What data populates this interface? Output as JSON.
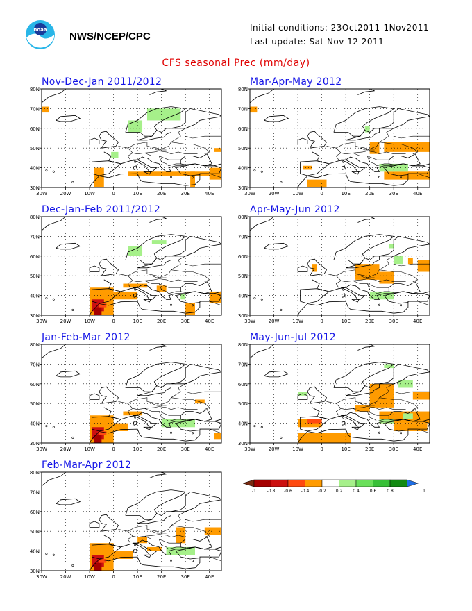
{
  "header": {
    "org": "NWS/NCEP/CPC",
    "initial_conditions": "Initial conditions: 23Oct2011-1Nov2011",
    "last_update": "Last update: Sat Nov 12 2011",
    "title": "CFS seasonal Prec (mm/day)"
  },
  "colors": {
    "title": "#e00000",
    "panel_title": "#1414e6",
    "land_border": "#000000"
  },
  "axes": {
    "lat_ticks": [
      "80N",
      "70N",
      "60N",
      "50N",
      "40N",
      "30N"
    ],
    "lon_ticks": [
      "30W",
      "20W",
      "10W",
      "0",
      "10E",
      "20E",
      "30E",
      "40E"
    ]
  },
  "panels": [
    {
      "id": "ndj",
      "title": "Nov-Dec-Jan 2011/2012"
    },
    {
      "id": "mam",
      "title": "Mar-Apr-May 2012"
    },
    {
      "id": "djf",
      "title": "Dec-Jan-Feb 2011/2012"
    },
    {
      "id": "amj",
      "title": "Apr-May-Jun 2012"
    },
    {
      "id": "jfm",
      "title": "Jan-Feb-Mar 2012"
    },
    {
      "id": "mjj",
      "title": "May-Jun-Jul 2012"
    },
    {
      "id": "fma",
      "title": "Feb-Mar-Apr 2012"
    }
  ],
  "legend": {
    "labels": [
      "-1",
      "-0.8",
      "-0.6",
      "-0.4",
      "-0.2",
      "0.2",
      "0.4",
      "0.6",
      "0.8",
      "1"
    ],
    "colors": [
      "#7a2a10",
      "#a50000",
      "#cc1010",
      "#ff4a10",
      "#ff9b00",
      "#ffffff",
      "#a6f08a",
      "#6ae05a",
      "#38c038",
      "#128a12",
      "#1e6ee6"
    ]
  },
  "map_data": {
    "ndj": {
      "dry": [
        [
          -30,
          68,
          -27,
          71
        ],
        [
          6,
          36,
          40,
          38
        ],
        [
          -8,
          30,
          -4,
          40
        ],
        [
          32,
          30,
          34,
          38
        ],
        [
          40,
          34,
          45,
          40
        ],
        [
          42,
          48,
          45,
          50
        ]
      ],
      "wet": [
        [
          6,
          58,
          12,
          64
        ],
        [
          14,
          64,
          28,
          70
        ],
        [
          -1,
          45,
          2,
          48
        ]
      ]
    },
    "mam": {
      "dry": [
        [
          -30,
          68,
          -27,
          71
        ],
        [
          20,
          47,
          24,
          53
        ],
        [
          26,
          48,
          45,
          53
        ],
        [
          -8,
          39,
          -4,
          41
        ],
        [
          -6,
          30,
          2,
          34
        ],
        [
          26,
          34,
          45,
          38
        ]
      ],
      "wet": [
        [
          24,
          38,
          36,
          42
        ],
        [
          18,
          58,
          20,
          61
        ]
      ]
    },
    "djf": {
      "dry": [
        [
          -10,
          30,
          0,
          44
        ],
        [
          0,
          38,
          10,
          42
        ],
        [
          4,
          44,
          14,
          46
        ],
        [
          18,
          42,
          22,
          45
        ],
        [
          30,
          30,
          34,
          36
        ],
        [
          40,
          36,
          45,
          42
        ]
      ],
      "wet": [
        [
          6,
          60,
          12,
          65
        ],
        [
          16,
          66,
          22,
          68
        ],
        [
          28,
          38,
          30,
          41
        ]
      ]
    },
    "amj": {
      "dry": [
        [
          -4,
          52,
          -2,
          56
        ],
        [
          14,
          48,
          24,
          56
        ],
        [
          24,
          46,
          30,
          52
        ],
        [
          40,
          52,
          45,
          58
        ],
        [
          36,
          56,
          38,
          59
        ]
      ],
      "wet": [
        [
          20,
          38,
          30,
          42
        ],
        [
          28,
          64,
          30,
          66
        ],
        [
          30,
          56,
          34,
          60
        ]
      ]
    },
    "jfm": {
      "dry": [
        [
          -10,
          30,
          0,
          44
        ],
        [
          0,
          36,
          6,
          40
        ],
        [
          4,
          44,
          12,
          46
        ],
        [
          34,
          50,
          38,
          52
        ],
        [
          42,
          32,
          45,
          35
        ]
      ],
      "wet": [
        [
          20,
          38,
          34,
          42
        ]
      ]
    },
    "mjj": {
      "dry": [
        [
          20,
          48,
          30,
          60
        ],
        [
          24,
          40,
          45,
          46
        ],
        [
          30,
          36,
          44,
          40
        ],
        [
          -10,
          38,
          0,
          42
        ],
        [
          -10,
          30,
          12,
          35
        ],
        [
          38,
          52,
          45,
          56
        ],
        [
          14,
          46,
          20,
          49
        ]
      ],
      "wet": [
        [
          -10,
          54,
          -6,
          56
        ],
        [
          24,
          40,
          30,
          42
        ],
        [
          34,
          42,
          38,
          45
        ],
        [
          26,
          68,
          30,
          70
        ],
        [
          32,
          58,
          38,
          62
        ]
      ]
    },
    "fma": {
      "dry": [
        [
          -10,
          30,
          0,
          44
        ],
        [
          0,
          36,
          8,
          40
        ],
        [
          10,
          44,
          14,
          47
        ],
        [
          26,
          44,
          30,
          52
        ],
        [
          38,
          48,
          45,
          52
        ],
        [
          14,
          40,
          20,
          42
        ]
      ],
      "wet": [
        [
          22,
          38,
          34,
          42
        ]
      ]
    }
  }
}
